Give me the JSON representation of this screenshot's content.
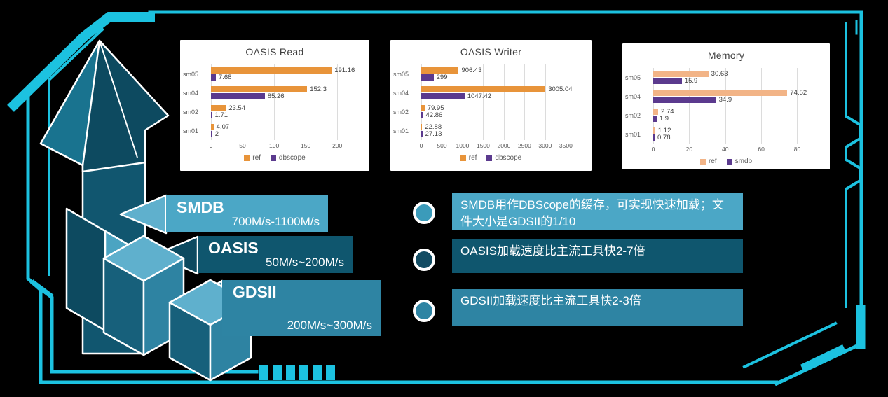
{
  "palette": {
    "frame": "#1CC2E0",
    "light_blue": "#4BA7C6",
    "dark_teal": "#0F566E",
    "mid_teal": "#2E84A3",
    "dot1": "#3B9BBA",
    "dot2": "#124C63",
    "dot3": "#2E84A3"
  },
  "chart_data": [
    {
      "type": "bar",
      "title": "OASIS Read",
      "orientation": "horizontal",
      "categories": [
        "sm05",
        "sm04",
        "sm02",
        "sm01"
      ],
      "series": [
        {
          "name": "ref",
          "color": "#E8943A",
          "values": [
            191.16,
            152.3,
            23.54,
            4.07
          ],
          "labels": [
            "191.16",
            "152.3",
            "23.54",
            "4.07"
          ]
        },
        {
          "name": "dbscope",
          "color": "#5B3A8E",
          "values": [
            7.68,
            85.26,
            1.71,
            2
          ],
          "labels": [
            "7.68",
            "85.26",
            "1.71",
            "2"
          ]
        }
      ],
      "xticks": [
        0,
        50,
        100,
        150,
        200
      ],
      "xmax": 222,
      "grid": true,
      "legend_position": "bottom"
    },
    {
      "type": "bar",
      "title": "OASIS Writer",
      "orientation": "horizontal",
      "categories": [
        "sm05",
        "sm04",
        "sm02",
        "sm01"
      ],
      "series": [
        {
          "name": "ref",
          "color": "#E8943A",
          "values": [
            906.43,
            3005.04,
            79.95,
            22.88
          ],
          "labels": [
            "906.43",
            "3005.04",
            "79.95",
            "22.88"
          ]
        },
        {
          "name": "dbscope",
          "color": "#5B3A8E",
          "values": [
            299,
            1047.42,
            42.86,
            27.13
          ],
          "labels": [
            "299",
            "1047.42",
            "42.86",
            "27.13"
          ]
        }
      ],
      "xticks": [
        0,
        500,
        1000,
        1500,
        2000,
        2500,
        3000,
        3500
      ],
      "xmax": 3680,
      "grid": true,
      "legend_position": "bottom"
    },
    {
      "type": "bar",
      "title": "Memory",
      "orientation": "horizontal",
      "categories": [
        "sm05",
        "sm04",
        "sm02",
        "sm01"
      ],
      "series": [
        {
          "name": "ref",
          "color": "#F2B487",
          "values": [
            30.63,
            74.52,
            2.74,
            1.12
          ],
          "labels": [
            "30.63",
            "74.52",
            "2.74",
            "1.12"
          ]
        },
        {
          "name": "smdb",
          "color": "#5B3A8E",
          "values": [
            15.9,
            34.9,
            1.9,
            0.78
          ],
          "labels": [
            "15.9",
            "34.9",
            "1.9",
            "0.78"
          ]
        }
      ],
      "xticks": [
        0,
        20,
        40,
        60,
        80
      ],
      "xmax": 88,
      "grid": true,
      "legend_position": "bottom"
    }
  ],
  "steps": [
    {
      "name": "SMDB",
      "range": "700M/s-1100M/s"
    },
    {
      "name": "OASIS",
      "range": "50M/s~200M/s"
    },
    {
      "name": "GDSII",
      "range": "200M/s~300M/s"
    }
  ],
  "bullets": [
    {
      "text": "SMDB用作DBScope的缓存，可实现快速加载；文件大小是GDSII的1/10"
    },
    {
      "text": "OASIS加载速度比主流工具快2-7倍"
    },
    {
      "text": "GDSII加载速度比主流工具快2-3倍"
    }
  ]
}
